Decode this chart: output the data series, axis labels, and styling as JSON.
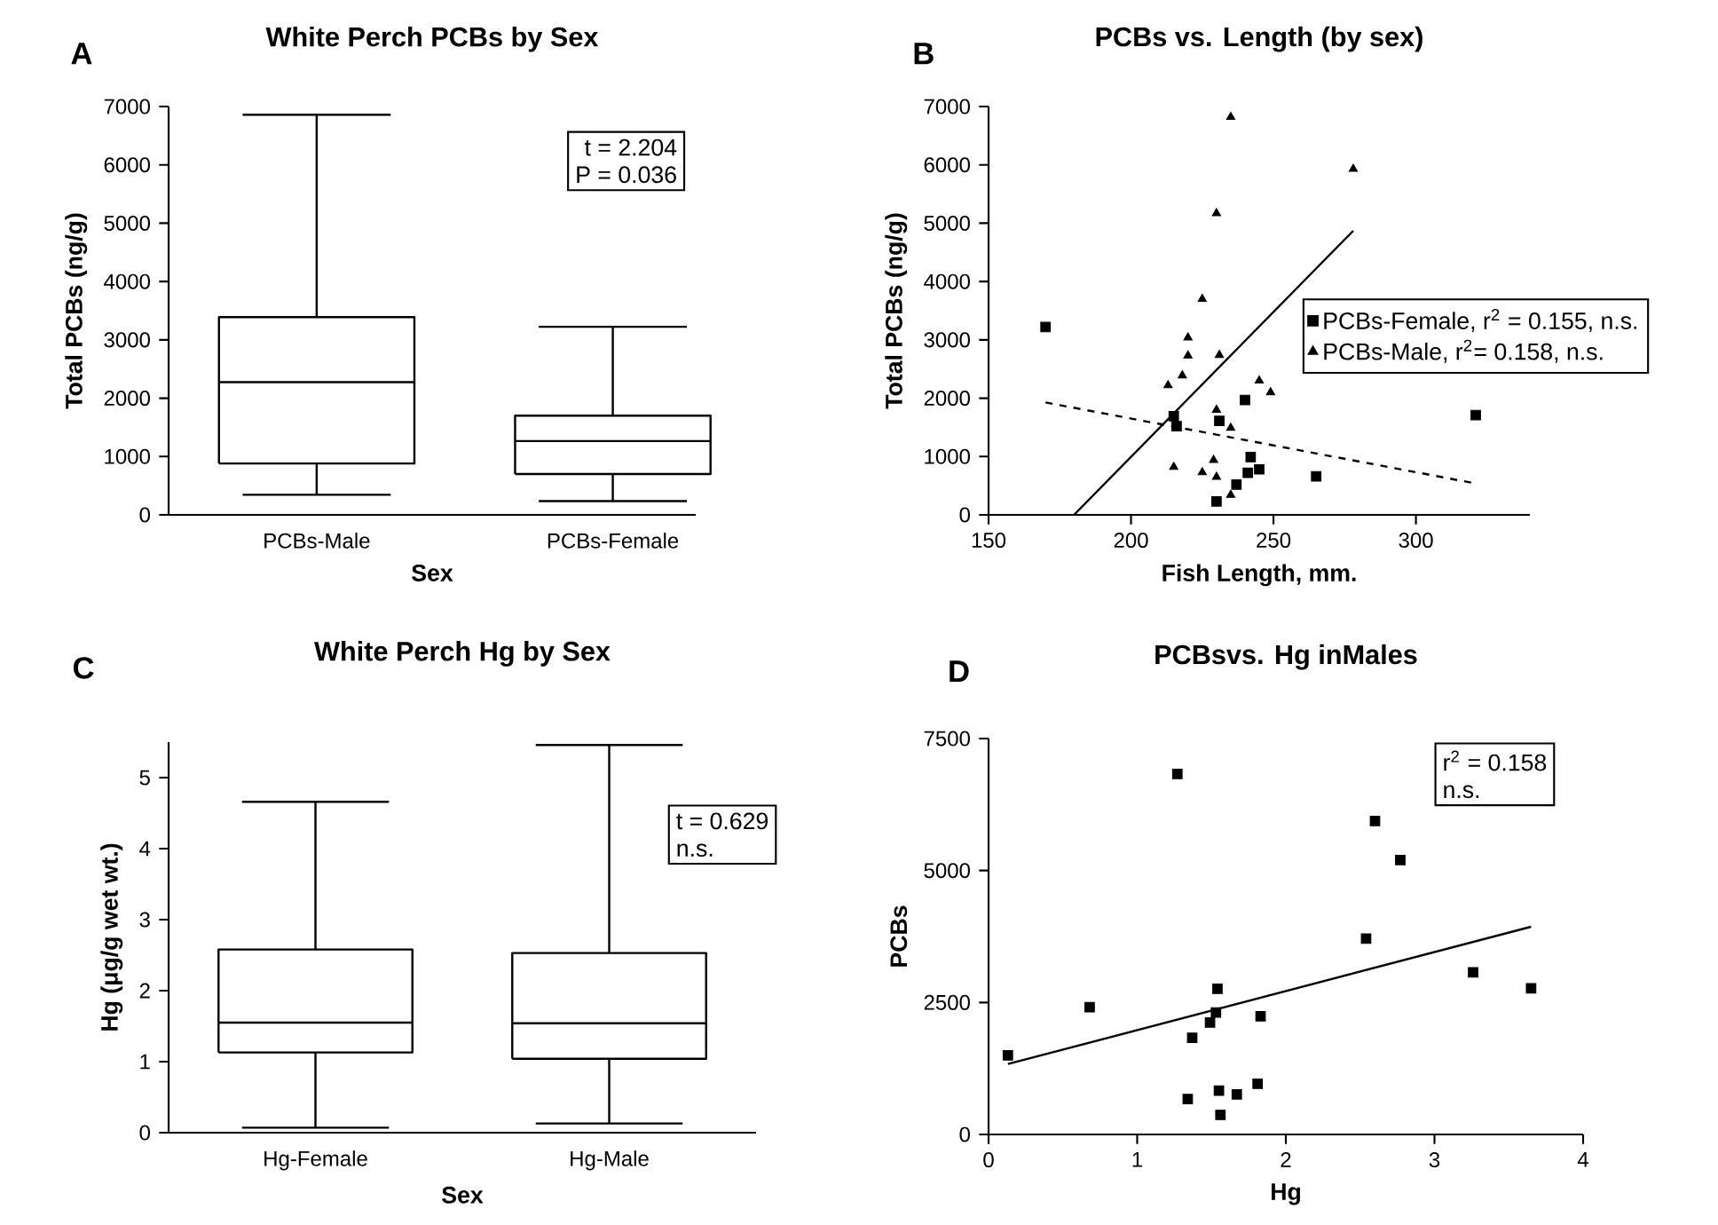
{
  "chart_data": [
    {
      "type": "box",
      "title": "White Perch PCBs by Sex",
      "xlabel": "Sex",
      "ylabel": "Total PCBs (ng/g)",
      "annotations": [
        "A",
        "t = 2.204",
        "P = 0.036"
      ],
      "categories": [
        "PCBs-Male",
        "PCBs-Female"
      ],
      "ylim": [
        0,
        7000
      ],
      "yticks": [
        0,
        1000,
        2000,
        3000,
        4000,
        5000,
        6000,
        7000
      ],
      "series": [
        {
          "color": "#000000",
          "boxes": [
            {
              "low": 345,
              "q1": 880,
              "median": 2275,
              "q3": 3390,
              "high": 6860
            },
            {
              "low": 235,
              "q1": 700,
              "median": 1265,
              "q3": 1700,
              "high": 3225
            }
          ]
        }
      ]
    },
    {
      "type": "scatter",
      "title": "PCBs vs. Length (by sex)",
      "xlabel": "Fish Length, mm.",
      "ylabel": "Total PCBs (ng/g)",
      "annotations": [
        "B"
      ],
      "legend": "right",
      "xlim": [
        150,
        340
      ],
      "xticks": [
        150,
        200,
        250,
        300
      ],
      "ylim": [
        0,
        7000
      ],
      "yticks": [
        0,
        1000,
        2000,
        3000,
        4000,
        5000,
        6000,
        7000
      ],
      "series": [
        {
          "name": "PCBs-Female, r$^{2}$ = 0.155, n.s.",
          "color": "#000000",
          "marker": "square",
          "x": [
            170,
            215,
            216,
            231,
            240,
            242,
            241,
            245,
            237,
            230,
            265,
            321
          ],
          "values": [
            3220,
            1690,
            1520,
            1610,
            1970,
            990,
            720,
            780,
            520,
            230,
            660,
            1710
          ]
        },
        {
          "name": "PCBs-Male, r$^{2}$= 0.158, n.s.",
          "color": "#000000",
          "marker": "triangle",
          "x": [
            235,
            278,
            230,
            225,
            220,
            220,
            231,
            218,
            213,
            245,
            249,
            230,
            235,
            215,
            229,
            225,
            230,
            235
          ],
          "values": [
            6820,
            5930,
            5170,
            3700,
            3040,
            2730,
            2740,
            2390,
            2220,
            2300,
            2100,
            1800,
            1490,
            820,
            940,
            730,
            650,
            340
          ]
        },
        {
          "type": "line",
          "color": "#000000",
          "line_style": "dashed",
          "x": [
            170,
            321
          ],
          "values": [
            1927,
            538
          ]
        },
        {
          "type": "line",
          "color": "#000000",
          "line_style": "solid",
          "x": [
            180,
            278
          ],
          "values": [
            0,
            4870
          ]
        }
      ]
    },
    {
      "type": "box",
      "title": "White Perch Hg by Sex",
      "xlabel": "Sex",
      "ylabel": "Hg (μg/g wet wt.)",
      "annotations": [
        "C",
        "t = 0.629",
        "n.s."
      ],
      "categories": [
        "Hg-Female",
        "Hg-Male"
      ],
      "ylim": [
        0,
        5.5
      ],
      "yticks": [
        0,
        1,
        2,
        3,
        4,
        5
      ],
      "series": [
        {
          "color": "#000000",
          "boxes": [
            {
              "low": 0.07,
              "q1": 1.13,
              "median": 1.55,
              "q3": 2.58,
              "high": 4.66
            },
            {
              "low": 0.13,
              "q1": 1.04,
              "median": 1.54,
              "q3": 2.53,
              "high": 5.46
            }
          ]
        }
      ]
    },
    {
      "type": "scatter",
      "title": "PCBsvs. Hg inMales",
      "xlabel": "Hg",
      "ylabel": "PCBs",
      "annotations": [
        "D",
        "r$^{2}$ = 0.158",
        "n.s."
      ],
      "xlim": [
        0,
        4
      ],
      "xticks": [
        0,
        1,
        2,
        3,
        4
      ],
      "ylim": [
        0,
        7500
      ],
      "yticks": [
        0,
        2500,
        5000,
        7500
      ],
      "series": [
        {
          "color": "#000000",
          "marker": "square",
          "x": [
            1.27,
            2.6,
            2.77,
            2.54,
            3.26,
            3.65,
            0.68,
            1.54,
            1.53,
            1.83,
            1.49,
            1.37,
            0.13,
            1.81,
            1.55,
            1.67,
            1.34,
            1.56
          ],
          "values": [
            6830,
            5940,
            5200,
            3710,
            3070,
            2770,
            2410,
            2760,
            2310,
            2240,
            2120,
            1830,
            1500,
            960,
            830,
            760,
            670,
            370
          ]
        },
        {
          "type": "line",
          "color": "#000000",
          "line_style": "solid",
          "x": [
            0.13,
            3.65
          ],
          "values": [
            1334,
            3935
          ]
        }
      ]
    }
  ]
}
